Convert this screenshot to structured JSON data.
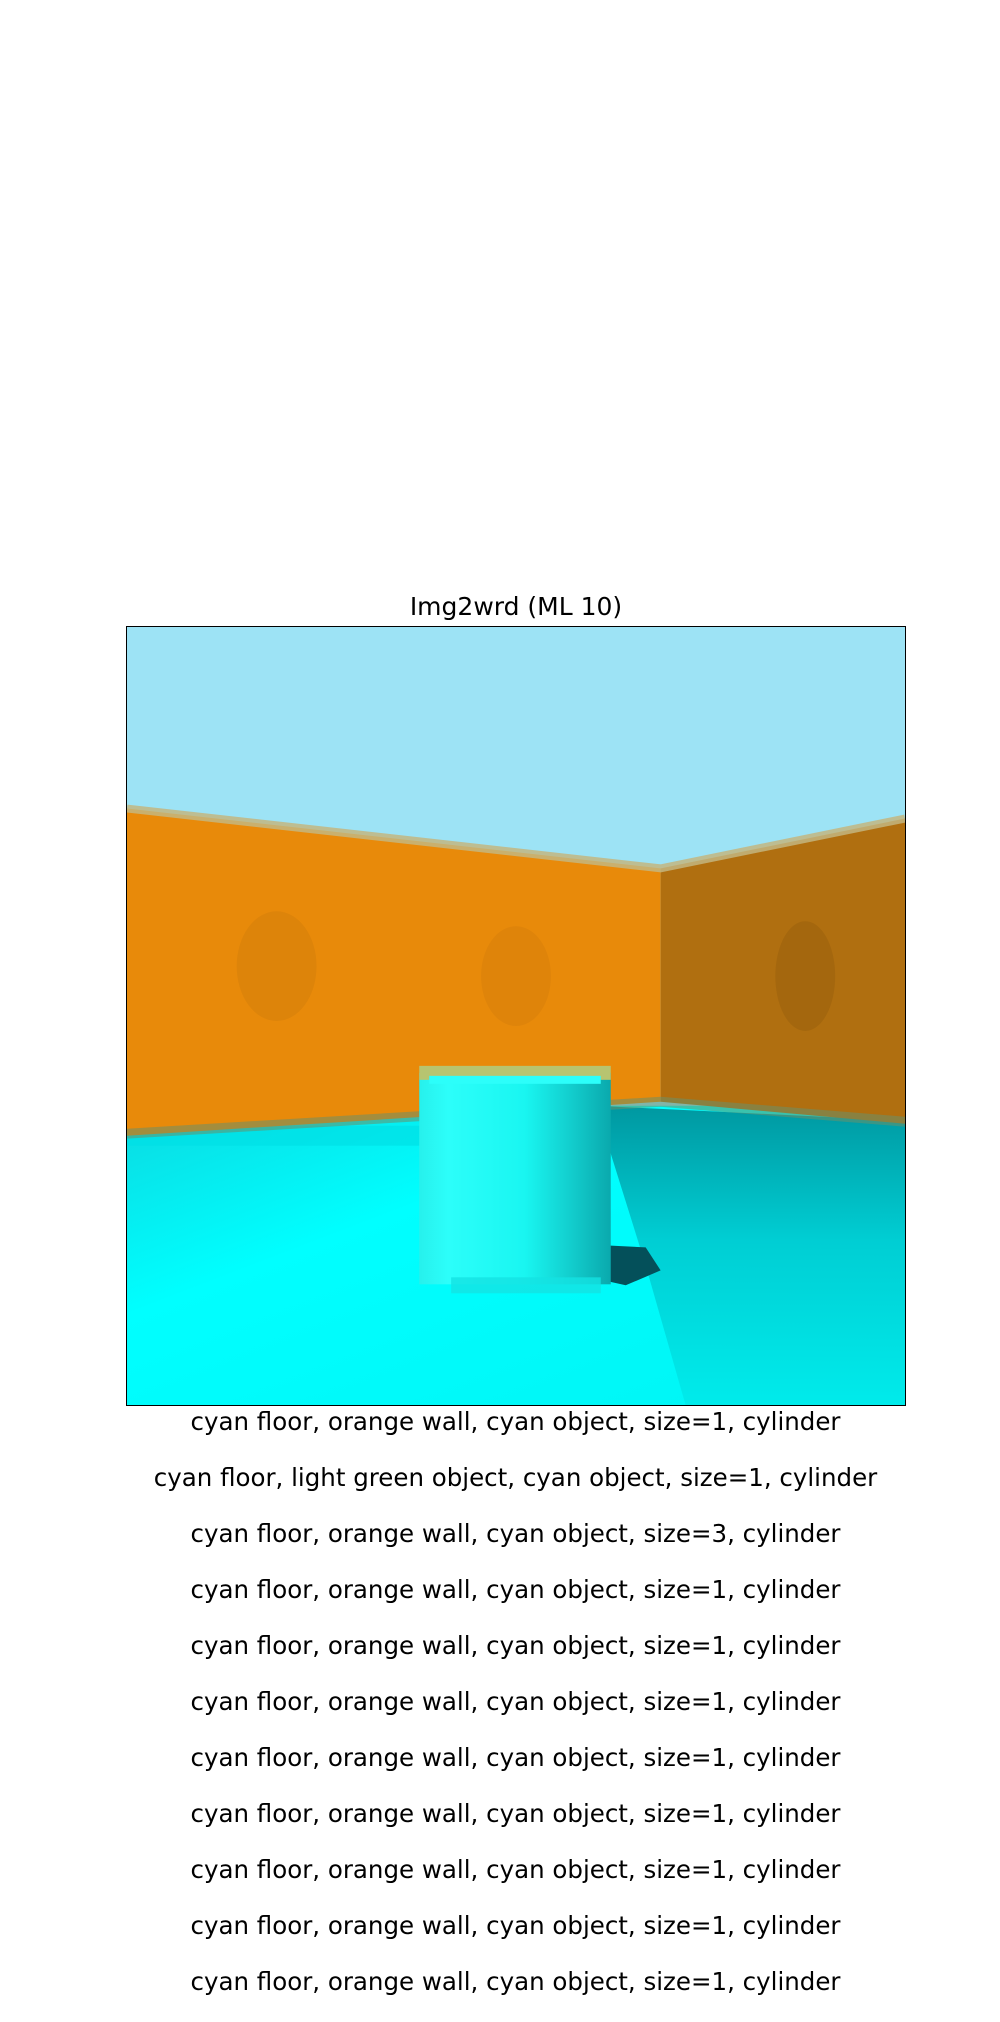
{
  "figure": {
    "title": "Img2wrd (ML 10)"
  },
  "scene": {
    "sky_color": "#9de3f5",
    "left_wall_color": "#e88a0a",
    "right_wall_color": "#b06f10",
    "wall_edge_color": "#c3b680",
    "floor_color": "#00ffff",
    "floor_shadow_color": "#008f99",
    "object_color": "#1cfbf5",
    "object_shade_color": "#15c8c8",
    "object_top_color": "#b7c470",
    "object_shadow_color": "#04505a"
  },
  "captions": [
    "cyan floor,  orange wall,  cyan object,  size=1,  cylinder",
    "cyan floor,  light green object,  cyan object,  size=1,  cylinder",
    "cyan floor,  orange wall,  cyan object,  size=3,  cylinder",
    "cyan floor,  orange wall,  cyan object,  size=1,  cylinder",
    "cyan floor,  orange wall,  cyan object,  size=1,  cylinder",
    "cyan floor,  orange wall,  cyan object,  size=1,  cylinder",
    "cyan floor,  orange wall,  cyan object,  size=1,  cylinder",
    "cyan floor,  orange wall,  cyan object,  size=1,  cylinder",
    "cyan floor,  orange wall,  cyan object,  size=1,  cylinder",
    "cyan floor,  orange wall,  cyan object,  size=1,  cylinder",
    "cyan floor,  orange wall,  cyan object,  size=1,  cylinder"
  ]
}
